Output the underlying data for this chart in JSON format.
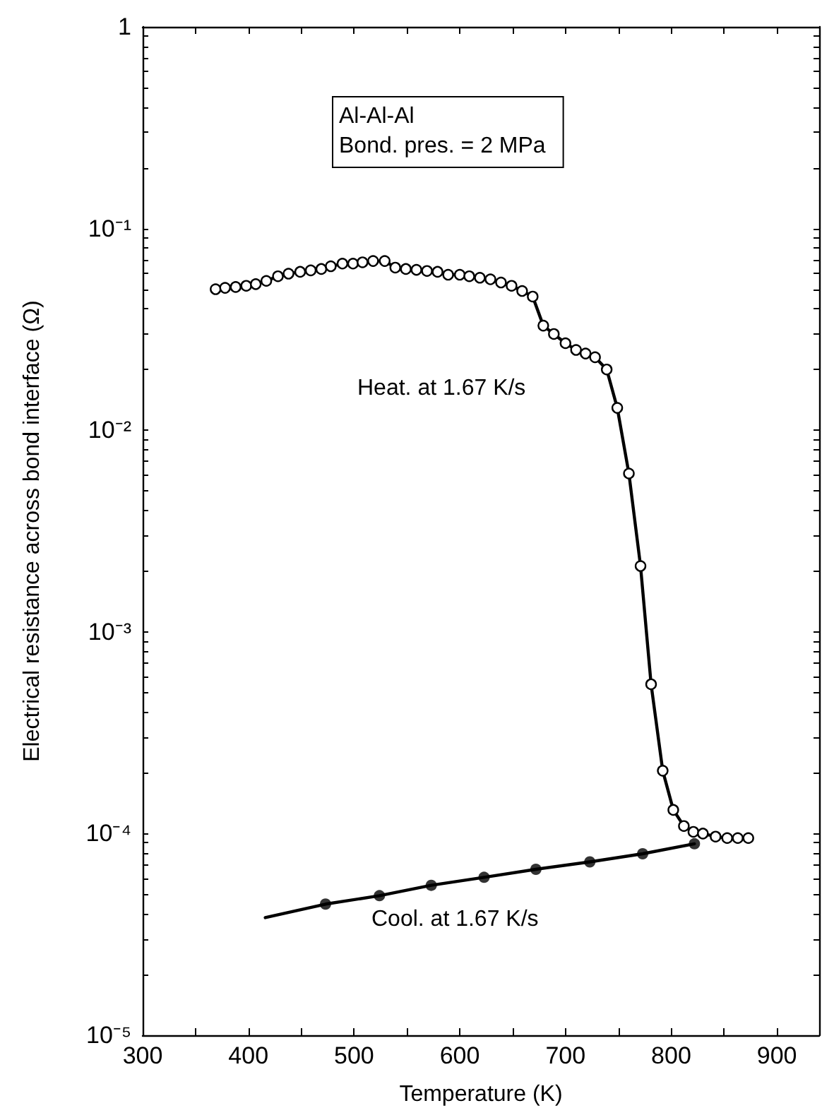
{
  "chart_data": {
    "type": "line",
    "xlabel": "Temperature (K)",
    "ylabel": "Electrical resistance across bond interface (Ω)",
    "annotations": [
      "Al-Al-Al\nBond. pres. = 2 MPa"
    ],
    "log": "y",
    "grid": false,
    "legend": false,
    "line_style": "solid",
    "xlim": [
      300,
      940
    ],
    "xticks": [
      300,
      {
        "value": 350,
        "label": null
      },
      400,
      {
        "value": 450,
        "label": null
      },
      500,
      {
        "value": 550,
        "label": null
      },
      600,
      {
        "value": 650,
        "label": null
      },
      700,
      {
        "value": 750,
        "label": null
      },
      800,
      {
        "value": 850,
        "label": null
      },
      900
    ],
    "ylim": [
      1e-05,
      1
    ],
    "yticks": [
      {
        "value": 1e-05,
        "label": "10⁻⁵"
      },
      {
        "value": 2e-05,
        "label": null
      },
      {
        "value": 3e-05,
        "label": null
      },
      {
        "value": 4e-05,
        "label": null
      },
      {
        "value": 5e-05,
        "label": null
      },
      {
        "value": 6e-05,
        "label": null
      },
      {
        "value": 7e-05,
        "label": null
      },
      {
        "value": 8e-05,
        "label": null
      },
      {
        "value": 9e-05,
        "label": null
      },
      {
        "value": 0.0001,
        "label": "10⁻⁴"
      },
      {
        "value": 0.0002,
        "label": null
      },
      {
        "value": 0.0003,
        "label": null
      },
      {
        "value": 0.0004,
        "label": null
      },
      {
        "value": 0.0005,
        "label": null
      },
      {
        "value": 0.0006,
        "label": null
      },
      {
        "value": 0.0007,
        "label": null
      },
      {
        "value": 0.0008,
        "label": null
      },
      {
        "value": 0.0009,
        "label": null
      },
      {
        "value": 0.001,
        "label": "10⁻³"
      },
      {
        "value": 0.002,
        "label": null
      },
      {
        "value": 0.003,
        "label": null
      },
      {
        "value": 0.004,
        "label": null
      },
      {
        "value": 0.005,
        "label": null
      },
      {
        "value": 0.006,
        "label": null
      },
      {
        "value": 0.007,
        "label": null
      },
      {
        "value": 0.008,
        "label": null
      },
      {
        "value": 0.009,
        "label": null
      },
      {
        "value": 0.01,
        "label": "10⁻²"
      },
      {
        "value": 0.02,
        "label": null
      },
      {
        "value": 0.03,
        "label": null
      },
      {
        "value": 0.04,
        "label": null
      },
      {
        "value": 0.05,
        "label": null
      },
      {
        "value": 0.06,
        "label": null
      },
      {
        "value": 0.07,
        "label": null
      },
      {
        "value": 0.08,
        "label": null
      },
      {
        "value": 0.09,
        "label": null
      },
      {
        "value": 0.1,
        "label": "10⁻¹"
      },
      {
        "value": 0.2,
        "label": null
      },
      {
        "value": 0.3,
        "label": null
      },
      {
        "value": 0.4,
        "label": null
      },
      {
        "value": 0.5,
        "label": null
      },
      {
        "value": 0.6,
        "label": null
      },
      {
        "value": 0.7,
        "label": null
      },
      {
        "value": 0.8,
        "label": null
      },
      {
        "value": 0.9,
        "label": null
      },
      {
        "value": 1,
        "label": "1"
      }
    ],
    "series": [
      {
        "name": "Heat. at 1.67 K/s",
        "marker": "circle",
        "color": "#000000",
        "x": [
          369,
          378,
          388,
          398,
          407,
          417,
          428,
          438,
          449,
          459,
          469,
          478,
          489,
          499,
          508,
          518,
          529,
          539,
          549,
          559,
          569,
          579,
          589,
          600,
          609,
          619,
          629,
          639,
          649,
          659,
          669,
          679,
          689,
          700,
          710,
          719,
          728,
          739,
          749,
          760,
          771,
          781,
          792,
          802,
          812,
          821,
          830,
          842,
          853,
          863,
          873
        ],
        "values": [
          0.05,
          0.0508,
          0.0513,
          0.052,
          0.053,
          0.055,
          0.058,
          0.0597,
          0.061,
          0.062,
          0.063,
          0.065,
          0.067,
          0.067,
          0.068,
          0.069,
          0.069,
          0.064,
          0.063,
          0.0624,
          0.0616,
          0.061,
          0.059,
          0.059,
          0.058,
          0.057,
          0.056,
          0.054,
          0.052,
          0.049,
          0.046,
          0.033,
          0.03,
          0.027,
          0.025,
          0.024,
          0.023,
          0.02,
          0.0129,
          0.0061,
          0.00212,
          0.00055,
          0.000205,
          0.000131,
          0.000109,
          0.000102,
          0.0001,
          9.66e-05,
          9.5e-05,
          9.5e-05,
          9.5e-05
        ]
      },
      {
        "name": "Cool. at 1.67 K/s",
        "type": "scatter",
        "marker": "circle",
        "color": "#000000",
        "x": [
          473,
          524,
          573,
          623,
          672,
          723,
          773,
          822
        ],
        "values": [
          4.47e-05,
          4.92e-05,
          5.54e-05,
          6.07e-05,
          6.65e-05,
          7.24e-05,
          7.94e-05,
          8.9e-05
        ]
      },
      {
        "marker": "none",
        "color": "#000000",
        "x": [
          416,
          473,
          524,
          573,
          623,
          672,
          723,
          773,
          822
        ],
        "values": [
          3.83e-05,
          4.47e-05,
          4.92e-05,
          5.54e-05,
          6.07e-05,
          6.65e-05,
          7.24e-05,
          7.94e-05,
          8.9e-05
        ]
      }
    ]
  }
}
